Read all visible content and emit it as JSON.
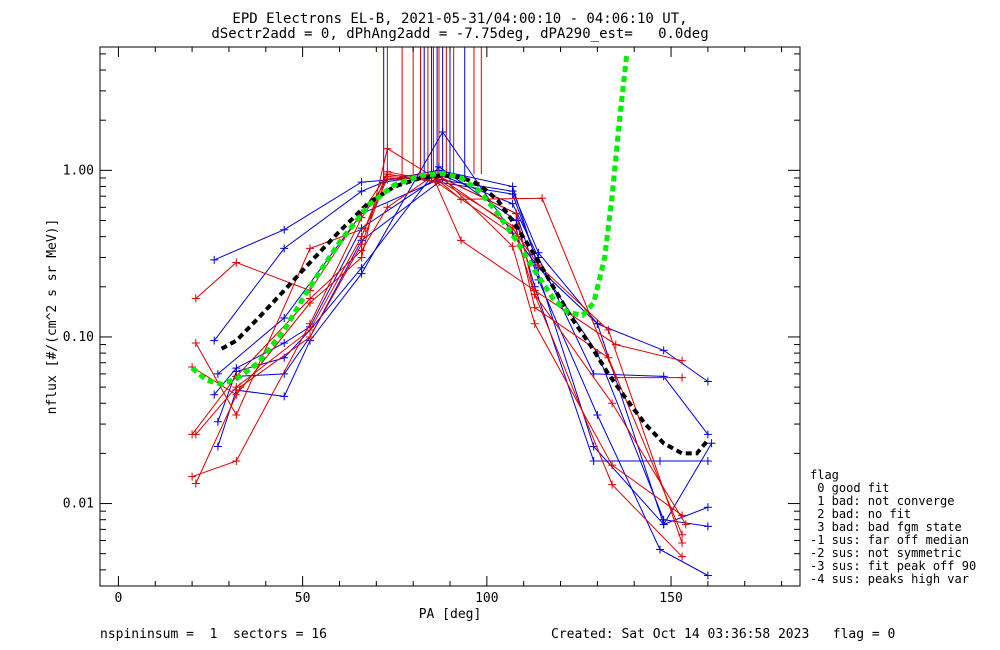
{
  "title_line1": "EPD Electrons EL-B, 2021-05-31/04:00:10 - 04:06:10 UT,",
  "title_line2": "dSectr2add = 0, dPhAng2add = -7.75deg, dPA290_est=   0.0deg",
  "footer": {
    "left": "nspininsum =  1  sectors = 16",
    "right": "Created: Sat Oct 14 03:36:58 2023   flag = 0"
  },
  "legend": {
    "title": "flag",
    "items": [
      " 0 good fit",
      " 1 bad: not converge",
      " 2 bad: no fit",
      " 3 bad: bad fgm state",
      "-1 sus: far off median",
      "-2 sus: not symmetric",
      "-3 sus: fit peak off 90",
      "-4 sus: peaks high var"
    ]
  },
  "colors": {
    "blue": "#0000dd",
    "red": "#dd0000",
    "black": "#000000",
    "green": "#00ee00"
  },
  "chart_data": {
    "type": "line",
    "xlabel": "PA [deg]",
    "ylabel": "nflux [#/(cm^2 s sr MeV)]",
    "xlim": [
      -5,
      185
    ],
    "ylim": [
      0.0032,
      5.5
    ],
    "yscale": "log",
    "xticks": [
      0,
      50,
      100,
      150
    ],
    "yticks": [
      0.01,
      0.1,
      1.0
    ],
    "ytick_labels": [
      "0.01",
      "0.10",
      "1.00"
    ],
    "vertical_lines": {
      "blue_x": [
        72,
        83,
        85,
        86.5,
        88,
        90,
        94
      ],
      "red_x": [
        73,
        77,
        80,
        82,
        84,
        85.5,
        87,
        89,
        91,
        96.5,
        98.5
      ]
    },
    "series": [
      {
        "color": "blue",
        "points": [
          [
            26,
            0.29
          ],
          [
            45,
            0.44
          ],
          [
            66,
            0.85
          ],
          [
            72,
            0.87
          ],
          [
            87,
            1.0
          ],
          [
            107,
            0.8
          ],
          [
            114,
            0.26
          ],
          [
            130,
            0.12
          ],
          [
            148,
            0.083
          ],
          [
            160,
            0.054
          ]
        ]
      },
      {
        "color": "blue",
        "points": [
          [
            26,
            0.095
          ],
          [
            45,
            0.34
          ],
          [
            66,
            0.75
          ],
          [
            72,
            0.85
          ],
          [
            87,
            0.95
          ],
          [
            107,
            0.63
          ],
          [
            114,
            0.3
          ],
          [
            129,
            0.06
          ],
          [
            148,
            0.058
          ],
          [
            160,
            0.026
          ]
        ]
      },
      {
        "color": "blue",
        "points": [
          [
            26,
            0.045
          ],
          [
            32,
            0.065
          ],
          [
            45,
            0.092
          ],
          [
            52,
            0.115
          ],
          [
            66,
            0.45
          ],
          [
            87,
            0.92
          ],
          [
            108,
            0.55
          ],
          [
            114,
            0.22
          ],
          [
            130,
            0.034
          ],
          [
            147,
            0.0053
          ],
          [
            160,
            0.0037
          ]
        ]
      },
      {
        "color": "blue",
        "points": [
          [
            27,
            0.031
          ],
          [
            32,
            0.062
          ],
          [
            45,
            0.075
          ],
          [
            52,
            0.11
          ],
          [
            66,
            0.26
          ],
          [
            87,
            1.05
          ],
          [
            108,
            0.5
          ],
          [
            113,
            0.2
          ],
          [
            129,
            0.018
          ],
          [
            147,
            0.018
          ],
          [
            160,
            0.018
          ]
        ]
      },
      {
        "color": "blue",
        "points": [
          [
            27,
            0.022
          ],
          [
            32,
            0.048
          ],
          [
            45,
            0.044
          ],
          [
            52,
            0.095
          ],
          [
            66,
            0.24
          ],
          [
            88,
            1.7
          ],
          [
            107,
            0.42
          ],
          [
            113,
            0.28
          ],
          [
            129,
            0.022
          ],
          [
            148,
            0.0075
          ],
          [
            160,
            0.0095
          ]
        ]
      },
      {
        "color": "blue",
        "points": [
          [
            32,
            0.058
          ],
          [
            45,
            0.06
          ],
          [
            52,
            0.1
          ],
          [
            66,
            0.38
          ],
          [
            87,
            0.85
          ],
          [
            107,
            0.72
          ],
          [
            114,
            0.27
          ],
          [
            130,
            0.08
          ],
          [
            148,
            0.008
          ],
          [
            160,
            0.0073
          ]
        ]
      },
      {
        "color": "blue",
        "points": [
          [
            27,
            0.06
          ],
          [
            45,
            0.13
          ],
          [
            66,
            0.55
          ],
          [
            87,
            0.88
          ],
          [
            107,
            0.75
          ],
          [
            114,
            0.32
          ],
          [
            130,
            0.12
          ],
          [
            148,
            0.0075
          ],
          [
            161,
            0.023
          ]
        ]
      },
      {
        "color": "red",
        "points": [
          [
            21,
            0.17
          ],
          [
            32,
            0.28
          ],
          [
            52,
            0.19
          ],
          [
            67,
            0.6
          ],
          [
            73,
            0.95
          ],
          [
            86,
            0.85
          ],
          [
            93,
            0.38
          ],
          [
            113,
            0.19
          ],
          [
            135,
            0.09
          ],
          [
            153,
            0.072
          ]
        ]
      },
      {
        "color": "red",
        "points": [
          [
            21,
            0.092
          ],
          [
            32,
            0.034
          ],
          [
            52,
            0.34
          ],
          [
            67,
            0.45
          ],
          [
            73,
            0.9
          ],
          [
            86,
            0.9
          ],
          [
            93,
            0.67
          ],
          [
            115,
            0.68
          ],
          [
            135,
            0.057
          ],
          [
            153,
            0.057
          ]
        ]
      },
      {
        "color": "red",
        "points": [
          [
            20,
            0.066
          ],
          [
            32,
            0.045
          ],
          [
            52,
            0.16
          ],
          [
            66,
            0.3
          ],
          [
            73,
            1.35
          ],
          [
            86,
            0.9
          ],
          [
            108,
            0.45
          ],
          [
            113,
            0.15
          ],
          [
            133,
            0.075
          ],
          [
            153,
            0.0065
          ]
        ]
      },
      {
        "color": "red",
        "points": [
          [
            20,
            0.026
          ],
          [
            32,
            0.058
          ],
          [
            52,
            0.17
          ],
          [
            66,
            0.33
          ],
          [
            73,
            0.6
          ],
          [
            86,
            0.95
          ],
          [
            107,
            0.45
          ],
          [
            114,
            0.27
          ],
          [
            133,
            0.11
          ],
          [
            153,
            0.0058
          ]
        ]
      },
      {
        "color": "red",
        "points": [
          [
            20,
            0.0145
          ],
          [
            32,
            0.018
          ],
          [
            52,
            0.12
          ],
          [
            66,
            0.52
          ],
          [
            73,
            0.88
          ],
          [
            87,
            0.92
          ],
          [
            108,
            0.55
          ],
          [
            113,
            0.18
          ],
          [
            134,
            0.013
          ],
          [
            153,
            0.0048
          ]
        ]
      },
      {
        "color": "red",
        "points": [
          [
            21,
            0.0132
          ],
          [
            33,
            0.05
          ],
          [
            52,
            0.1
          ],
          [
            66,
            0.36
          ],
          [
            73,
            0.92
          ],
          [
            87,
            0.95
          ],
          [
            107,
            0.35
          ],
          [
            113,
            0.12
          ],
          [
            134,
            0.017
          ],
          [
            153,
            0.0085
          ]
        ]
      },
      {
        "color": "red",
        "points": [
          [
            21,
            0.026
          ],
          [
            32,
            0.05
          ],
          [
            52,
            0.11
          ],
          [
            66,
            0.4
          ],
          [
            73,
            0.98
          ],
          [
            86,
            0.86
          ],
          [
            108,
            0.4
          ],
          [
            113,
            0.18
          ],
          [
            134,
            0.04
          ],
          [
            154,
            0.0075
          ]
        ]
      }
    ],
    "fits": [
      {
        "color": "black",
        "style": "dashed",
        "points": [
          [
            28,
            0.085
          ],
          [
            32,
            0.095
          ],
          [
            38,
            0.13
          ],
          [
            45,
            0.19
          ],
          [
            52,
            0.28
          ],
          [
            60,
            0.43
          ],
          [
            68,
            0.64
          ],
          [
            75,
            0.8
          ],
          [
            82,
            0.9
          ],
          [
            88,
            0.93
          ],
          [
            93,
            0.91
          ],
          [
            98,
            0.82
          ],
          [
            103,
            0.66
          ],
          [
            108,
            0.46
          ],
          [
            113,
            0.31
          ],
          [
            118,
            0.2
          ],
          [
            123,
            0.13
          ],
          [
            128,
            0.09
          ],
          [
            133,
            0.06
          ],
          [
            138,
            0.042
          ],
          [
            143,
            0.03
          ],
          [
            148,
            0.023
          ],
          [
            153,
            0.02
          ],
          [
            157,
            0.02
          ],
          [
            160,
            0.024
          ]
        ]
      },
      {
        "color": "green",
        "style": "dashed",
        "points": [
          [
            20,
            0.065
          ],
          [
            24,
            0.055
          ],
          [
            28,
            0.052
          ],
          [
            32,
            0.056
          ],
          [
            38,
            0.07
          ],
          [
            45,
            0.11
          ],
          [
            52,
            0.2
          ],
          [
            60,
            0.37
          ],
          [
            68,
            0.62
          ],
          [
            75,
            0.82
          ],
          [
            82,
            0.93
          ],
          [
            88,
            0.96
          ],
          [
            93,
            0.9
          ],
          [
            98,
            0.75
          ],
          [
            103,
            0.55
          ],
          [
            108,
            0.38
          ],
          [
            113,
            0.25
          ],
          [
            118,
            0.17
          ],
          [
            122,
            0.14
          ],
          [
            126,
            0.135
          ],
          [
            129,
            0.16
          ],
          [
            132,
            0.3
          ],
          [
            134,
            0.7
          ],
          [
            136,
            2.0
          ],
          [
            138,
            5.0
          ]
        ]
      }
    ]
  }
}
